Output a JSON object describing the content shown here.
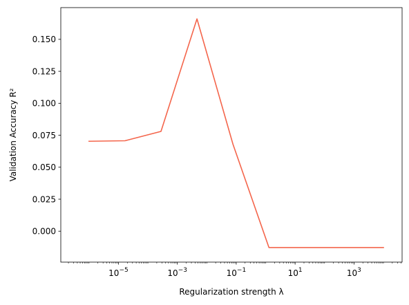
{
  "chart_data": {
    "type": "line",
    "xlabel": "Regularization strength λ",
    "ylabel": "Validation Accuracy R²",
    "x_scale": "log",
    "xlim": [
      1.1e-07,
      43000.0
    ],
    "ylim": [
      -0.0242,
      0.1748
    ],
    "x_ticks": [
      {
        "value": 1e-05,
        "base": "10",
        "exp": "−5"
      },
      {
        "value": 0.001,
        "base": "10",
        "exp": "−3"
      },
      {
        "value": 0.1,
        "base": "10",
        "exp": "−1"
      },
      {
        "value": 10,
        "base": "10",
        "exp": "1"
      },
      {
        "value": 1000,
        "base": "10",
        "exp": "3"
      }
    ],
    "y_ticks": [
      {
        "value": 0.15,
        "label": "0.150"
      },
      {
        "value": 0.125,
        "label": "0.125"
      },
      {
        "value": 0.1,
        "label": "0.100"
      },
      {
        "value": 0.075,
        "label": "0.075"
      },
      {
        "value": 0.05,
        "label": "0.050"
      },
      {
        "value": 0.025,
        "label": "0.025"
      },
      {
        "value": 0.0,
        "label": "0.000"
      }
    ],
    "grid": false,
    "legend": "none",
    "series": [
      {
        "color": "#f4654b",
        "x": [
          1e-06,
          1.67e-05,
          0.000278,
          0.00464,
          0.0774,
          1.29,
          21.5,
          359,
          5990,
          10000.0
        ],
        "y": [
          0.0703,
          0.0707,
          0.078,
          0.166,
          0.068,
          -0.0128,
          -0.0128,
          -0.0128,
          -0.0128,
          -0.0128
        ]
      }
    ]
  }
}
